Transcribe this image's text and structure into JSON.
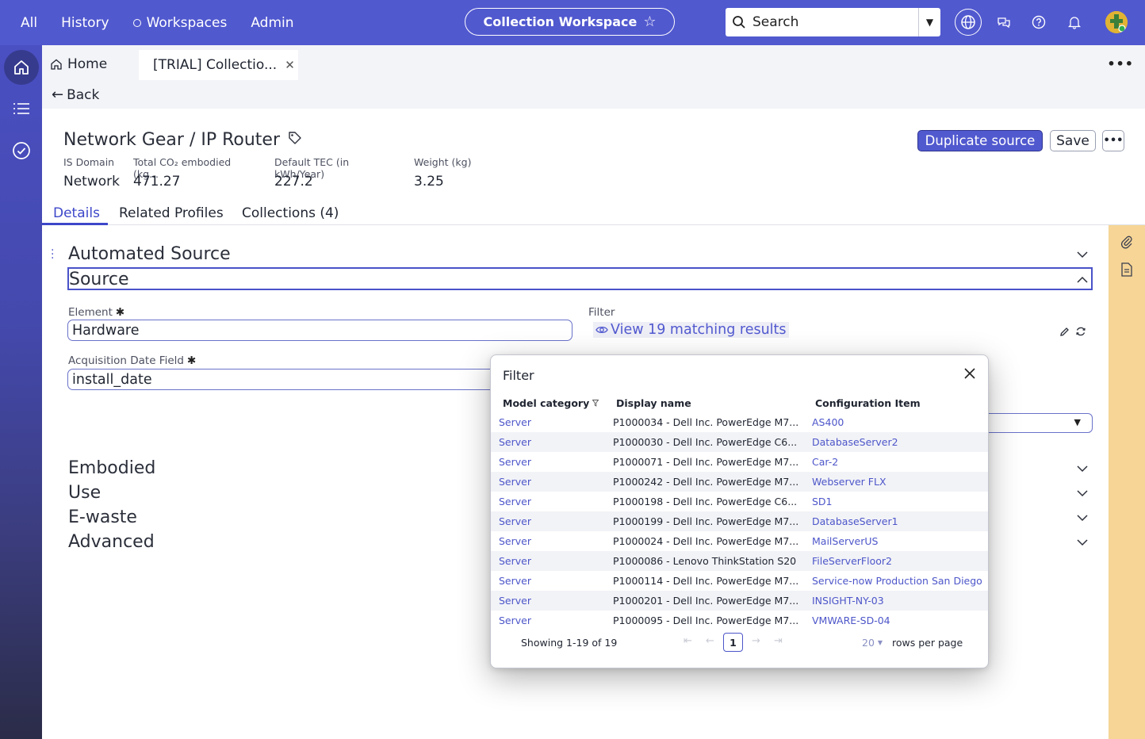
{
  "topbar": {
    "nav": [
      "All",
      "History",
      "Workspaces",
      "Admin"
    ],
    "workspace_title": "Collection Workspace",
    "search_label": "Search"
  },
  "tabs": {
    "home_label": "Home",
    "active_tab_label": "[TRIAL] Collectio...",
    "back_label": "Back"
  },
  "record": {
    "title": "Network Gear / IP Router",
    "duplicate_label": "Duplicate source",
    "save_label": "Save",
    "fields": [
      {
        "label": "IS Domain",
        "value": "Network"
      },
      {
        "label": "Total CO₂ embodied (kg...",
        "value": "471.27"
      },
      {
        "label": "Default TEC (in kWh/Year)",
        "value": "227.2"
      },
      {
        "label": "Weight (kg)",
        "value": "3.25"
      }
    ]
  },
  "detail_tabs": [
    "Details",
    "Related Profiles",
    "Collections (4)"
  ],
  "sections": {
    "automated_source": "Automated Source",
    "source": "Source",
    "embodied": "Embodied",
    "use": "Use",
    "ewaste": "E-waste",
    "advanced": "Advanced"
  },
  "form": {
    "element_label": "Element",
    "element_value": "Hardware",
    "filter_label": "Filter",
    "view_results": "View 19 matching results",
    "acq_label": "Acquisition Date Field",
    "acq_value": "install_date"
  },
  "modal": {
    "title": "Filter",
    "columns": [
      "Model category",
      "Display name",
      "Configuration Item"
    ],
    "rows": [
      {
        "category": "Server",
        "display": "P1000034 - Dell Inc. PowerEdge M7...",
        "ci": "AS400"
      },
      {
        "category": "Server",
        "display": "P1000030 - Dell Inc. PowerEdge C6...",
        "ci": "DatabaseServer2"
      },
      {
        "category": "Server",
        "display": "P1000071 - Dell Inc. PowerEdge M7...",
        "ci": "Car-2"
      },
      {
        "category": "Server",
        "display": "P1000242 - Dell Inc. PowerEdge M7...",
        "ci": "Webserver FLX"
      },
      {
        "category": "Server",
        "display": "P1000198 - Dell Inc. PowerEdge C6...",
        "ci": "SD1"
      },
      {
        "category": "Server",
        "display": "P1000199 - Dell Inc. PowerEdge M7...",
        "ci": "DatabaseServer1"
      },
      {
        "category": "Server",
        "display": "P1000024 - Dell Inc. PowerEdge M7...",
        "ci": "MailServerUS"
      },
      {
        "category": "Server",
        "display": "P1000086 - Lenovo ThinkStation S20",
        "ci": "FileServerFloor2"
      },
      {
        "category": "Server",
        "display": "P1000114 - Dell Inc. PowerEdge M7...",
        "ci": "Service-now Production San Diego"
      },
      {
        "category": "Server",
        "display": "P1000201 - Dell Inc. PowerEdge M7...",
        "ci": "INSIGHT-NY-03"
      },
      {
        "category": "Server",
        "display": "P1000095 - Dell Inc. PowerEdge M7...",
        "ci": "VMWARE-SD-04"
      }
    ],
    "showing": "Showing 1-19 of 19",
    "page": "1",
    "rows_per_page_value": "20",
    "rows_per_page_label": "rows per page"
  },
  "colors": {
    "brand": "#5159cf",
    "link": "#4d56c9",
    "rail": "#f6d596"
  }
}
